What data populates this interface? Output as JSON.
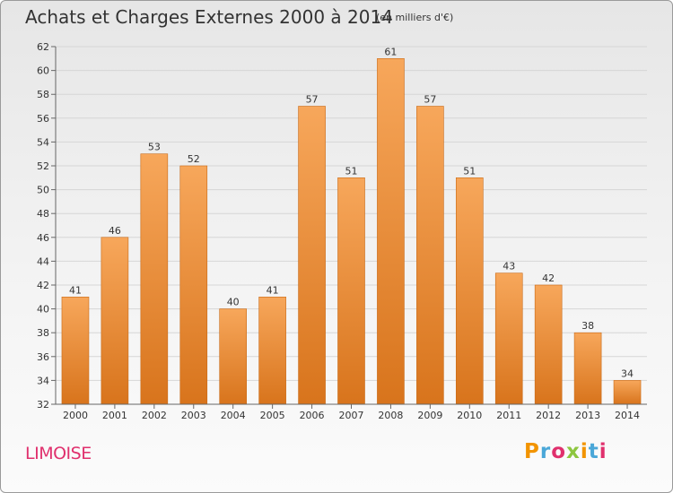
{
  "header": {
    "title": "Achats et Charges Externes 2000 à 2014",
    "subtitle": "(en milliers d'€)"
  },
  "footer": {
    "commune": "LIMOISE",
    "logo": "Proxiti"
  },
  "colors": {
    "bar_light": "#f7a75b",
    "bar_dark": "#d8741c",
    "commune": "#e0306d",
    "logo_letters": [
      "#f29400",
      "#4aa7d8",
      "#e0306d",
      "#8dc63f",
      "#f29400",
      "#4aa7d8",
      "#e0306d"
    ]
  },
  "chart_data": {
    "type": "bar",
    "title": "Achats et Charges Externes 2000 à 2014",
    "subtitle": "(en milliers d'€)",
    "categories": [
      "2000",
      "2001",
      "2002",
      "2003",
      "2004",
      "2005",
      "2006",
      "2007",
      "2008",
      "2009",
      "2010",
      "2011",
      "2012",
      "2013",
      "2014"
    ],
    "values": [
      41,
      46,
      53,
      52,
      40,
      41,
      57,
      51,
      61,
      57,
      51,
      43,
      42,
      38,
      34
    ],
    "ylim": [
      32,
      62
    ],
    "yticks": [
      32,
      34,
      36,
      38,
      40,
      42,
      44,
      46,
      48,
      50,
      52,
      54,
      56,
      58,
      60,
      62
    ],
    "grid": true,
    "xlabel": "",
    "ylabel": ""
  }
}
